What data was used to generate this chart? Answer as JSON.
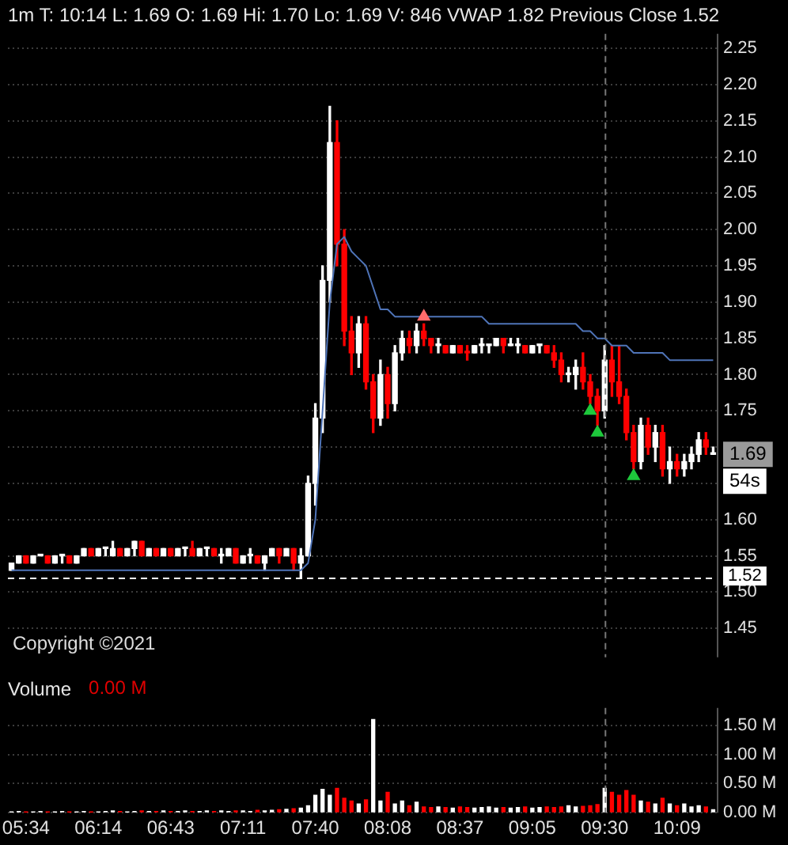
{
  "chart_data": [
    {
      "type": "candlestick",
      "title": "1m T: 10:14 L: 1.69 O: 1.69 Hi: 1.70 Lo: 1.69 V: 846 VWAP 1.82 Previous Close 1.52",
      "categories": [
        null,
        null,
        "05:34",
        null,
        null,
        null,
        null,
        null,
        null,
        null,
        null,
        null,
        "06:14",
        null,
        null,
        null,
        null,
        null,
        null,
        null,
        null,
        null,
        "06:43",
        null,
        null,
        null,
        null,
        null,
        null,
        null,
        null,
        null,
        "07:11",
        null,
        null,
        null,
        null,
        null,
        null,
        null,
        null,
        null,
        "07:40",
        null,
        null,
        null,
        null,
        null,
        null,
        null,
        null,
        null,
        "08:08",
        null,
        null,
        null,
        null,
        null,
        null,
        null,
        null,
        null,
        "08:37",
        null,
        null,
        null,
        null,
        null,
        null,
        null,
        null,
        null,
        "09:05",
        null,
        null,
        null,
        null,
        null,
        null,
        null,
        null,
        null,
        "09:30",
        null,
        null,
        null,
        null,
        null,
        null,
        null,
        null,
        null,
        "10:09",
        null,
        null,
        null,
        null,
        null
      ],
      "ylim": [
        1.41,
        2.27
      ],
      "yticks": [
        1.45,
        {
          "value": 1.5,
          "label": "1.50"
        },
        1.55,
        {
          "value": 1.6,
          "label": "1.60"
        },
        {
          "value": 1.65,
          "label": null
        },
        {
          "value": 1.7,
          "label": null
        },
        1.75,
        {
          "value": 1.8,
          "label": "1.80"
        },
        1.85,
        {
          "value": 1.9,
          "label": "1.90"
        },
        1.95,
        {
          "value": 2,
          "label": "2.00"
        },
        2.05,
        {
          "value": 2.1,
          "label": "2.10"
        },
        2.15,
        {
          "value": 2.2,
          "label": "2.20"
        },
        2.25
      ],
      "grid": "y",
      "legend": false,
      "tick_labels": "y",
      "series": [
        {
          "type": "candlestick",
          "ohlc": [
            [
              1.53,
              1.54,
              1.53,
              1.54
            ],
            [
              1.54,
              1.55,
              1.54,
              1.55
            ],
            [
              1.55,
              1.55,
              1.54,
              1.54
            ],
            [
              1.54,
              1.55,
              1.54,
              1.55
            ],
            [
              1.55,
              1.55,
              1.55,
              1.55
            ],
            [
              1.55,
              1.55,
              1.54,
              1.54
            ],
            [
              1.54,
              1.55,
              1.54,
              1.55
            ],
            [
              1.55,
              1.55,
              1.54,
              1.55
            ],
            [
              1.55,
              1.55,
              1.54,
              1.54
            ],
            [
              1.54,
              1.55,
              1.54,
              1.55
            ],
            [
              1.55,
              1.56,
              1.55,
              1.56
            ],
            [
              1.56,
              1.56,
              1.55,
              1.55
            ],
            [
              1.55,
              1.56,
              1.55,
              1.56
            ],
            [
              1.56,
              1.56,
              1.55,
              1.56
            ],
            [
              1.55,
              1.57,
              1.55,
              1.56
            ],
            [
              1.56,
              1.56,
              1.55,
              1.55
            ],
            [
              1.55,
              1.56,
              1.55,
              1.56
            ],
            [
              1.56,
              1.57,
              1.55,
              1.57
            ],
            [
              1.57,
              1.57,
              1.55,
              1.55
            ],
            [
              1.55,
              1.56,
              1.55,
              1.56
            ],
            [
              1.56,
              1.56,
              1.55,
              1.55
            ],
            [
              1.55,
              1.56,
              1.55,
              1.56
            ],
            [
              1.56,
              1.56,
              1.55,
              1.55
            ],
            [
              1.55,
              1.56,
              1.55,
              1.56
            ],
            [
              1.56,
              1.56,
              1.55,
              1.56
            ],
            [
              1.56,
              1.57,
              1.55,
              1.55
            ],
            [
              1.55,
              1.56,
              1.55,
              1.56
            ],
            [
              1.56,
              1.56,
              1.55,
              1.56
            ],
            [
              1.56,
              1.56,
              1.55,
              1.55
            ],
            [
              1.55,
              1.56,
              1.54,
              1.55
            ],
            [
              1.55,
              1.56,
              1.55,
              1.56
            ],
            [
              1.56,
              1.56,
              1.54,
              1.54
            ],
            [
              1.54,
              1.55,
              1.54,
              1.55
            ],
            [
              1.55,
              1.56,
              1.54,
              1.55
            ],
            [
              1.55,
              1.55,
              1.54,
              1.54
            ],
            [
              1.54,
              1.55,
              1.53,
              1.55
            ],
            [
              1.55,
              1.56,
              1.55,
              1.56
            ],
            [
              1.56,
              1.56,
              1.54,
              1.55
            ],
            [
              1.55,
              1.56,
              1.55,
              1.56
            ],
            [
              1.56,
              1.56,
              1.53,
              1.54
            ],
            [
              1.54,
              1.56,
              1.52,
              1.55
            ],
            [
              1.55,
              1.66,
              1.55,
              1.65
            ],
            [
              1.65,
              1.76,
              1.62,
              1.74
            ],
            [
              1.74,
              1.95,
              1.72,
              1.93
            ],
            [
              1.93,
              2.17,
              1.9,
              2.12
            ],
            [
              2.12,
              2.15,
              1.95,
              1.98
            ],
            [
              1.98,
              2,
              1.84,
              1.86
            ],
            [
              1.86,
              1.88,
              1.8,
              1.83
            ],
            [
              1.83,
              1.88,
              1.81,
              1.87
            ],
            [
              1.87,
              1.88,
              1.78,
              1.79
            ],
            [
              1.79,
              1.8,
              1.72,
              1.74
            ],
            [
              1.74,
              1.82,
              1.73,
              1.8
            ],
            [
              1.8,
              1.81,
              1.74,
              1.76
            ],
            [
              1.76,
              1.84,
              1.75,
              1.83
            ],
            [
              1.83,
              1.86,
              1.82,
              1.85
            ],
            [
              1.85,
              1.86,
              1.83,
              1.84
            ],
            [
              1.84,
              1.87,
              1.83,
              1.86
            ],
            [
              1.86,
              1.87,
              1.84,
              1.85
            ],
            [
              1.85,
              1.85,
              1.83,
              1.84
            ],
            [
              1.84,
              1.85,
              1.83,
              1.84
            ],
            [
              1.84,
              1.84,
              1.83,
              1.83
            ],
            [
              1.83,
              1.84,
              1.83,
              1.84
            ],
            [
              1.84,
              1.84,
              1.83,
              1.83
            ],
            [
              1.83,
              1.84,
              1.82,
              1.83
            ],
            [
              1.83,
              1.84,
              1.83,
              1.84
            ],
            [
              1.84,
              1.85,
              1.83,
              1.84
            ],
            [
              1.84,
              1.84,
              1.83,
              1.84
            ],
            [
              1.84,
              1.85,
              1.84,
              1.85
            ],
            [
              1.85,
              1.85,
              1.83,
              1.84
            ],
            [
              1.84,
              1.85,
              1.84,
              1.84
            ],
            [
              1.84,
              1.85,
              1.83,
              1.84
            ],
            [
              1.84,
              1.84,
              1.83,
              1.83
            ],
            [
              1.83,
              1.84,
              1.83,
              1.84
            ],
            [
              1.84,
              1.84,
              1.83,
              1.84
            ],
            [
              1.84,
              1.84,
              1.83,
              1.83
            ],
            [
              1.83,
              1.84,
              1.81,
              1.82
            ],
            [
              1.82,
              1.83,
              1.79,
              1.8
            ],
            [
              1.8,
              1.81,
              1.79,
              1.8
            ],
            [
              1.8,
              1.82,
              1.78,
              1.81
            ],
            [
              1.81,
              1.83,
              1.78,
              1.79
            ],
            [
              1.79,
              1.8,
              1.76,
              1.77
            ],
            [
              1.77,
              1.78,
              1.73,
              1.75
            ],
            [
              1.75,
              1.84,
              1.74,
              1.82
            ],
            [
              1.82,
              1.84,
              1.77,
              1.79
            ],
            [
              1.79,
              1.84,
              1.76,
              1.77
            ],
            [
              1.77,
              1.78,
              1.71,
              1.72
            ],
            [
              1.72,
              1.73,
              1.67,
              1.68
            ],
            [
              1.68,
              1.74,
              1.67,
              1.73
            ],
            [
              1.73,
              1.74,
              1.69,
              1.7
            ],
            [
              1.7,
              1.73,
              1.68,
              1.72
            ],
            [
              1.72,
              1.73,
              1.66,
              1.67
            ],
            [
              1.67,
              1.7,
              1.65,
              1.68
            ],
            [
              1.68,
              1.69,
              1.66,
              1.67
            ],
            [
              1.67,
              1.69,
              1.66,
              1.68
            ],
            [
              1.68,
              1.7,
              1.67,
              1.69
            ],
            [
              1.69,
              1.72,
              1.68,
              1.71
            ],
            [
              1.71,
              1.72,
              1.69,
              1.7
            ],
            [
              1.69,
              1.7,
              1.69,
              1.69
            ]
          ],
          "colors": [
            "#ffffff",
            "#ffffff",
            "#ff0000",
            "#ffffff",
            "#ffffff",
            "#ff0000",
            "#ffffff",
            "#ffffff",
            "#ff0000",
            "#ffffff",
            "#ffffff",
            "#ff0000",
            "#ffffff",
            "#ffffff",
            "#ffffff",
            "#ff0000",
            "#ffffff",
            "#ffffff",
            "#ff0000",
            "#ffffff",
            "#ff0000",
            "#ffffff",
            "#ff0000",
            "#ffffff",
            "#ffffff",
            "#ff0000",
            "#ffffff",
            "#ffffff",
            "#ff0000",
            "#ffffff",
            "#ffffff",
            "#ff0000",
            "#ffffff",
            "#ffffff",
            "#ff0000",
            "#ffffff",
            "#ffffff",
            "#ff0000",
            "#ffffff",
            "#ff0000",
            "#ffffff",
            "#ffffff",
            "#ffffff",
            "#ffffff",
            "#ffffff",
            "#ff0000",
            "#ff0000",
            "#ff0000",
            "#ffffff",
            "#ff0000",
            "#ff0000",
            "#ffffff",
            "#ff0000",
            "#ffffff",
            "#ffffff",
            "#ff0000",
            "#ffffff",
            "#ff0000",
            "#ff0000",
            "#ffffff",
            "#ff0000",
            "#ffffff",
            "#ff0000",
            "#ff0000",
            "#ffffff",
            "#ffffff",
            "#ffffff",
            "#ffffff",
            "#ff0000",
            "#ffffff",
            "#ffffff",
            "#ff0000",
            "#ffffff",
            "#ffffff",
            "#ff0000",
            "#ff0000",
            "#ff0000",
            "#ffffff",
            "#ffffff",
            "#ff0000",
            "#ff0000",
            "#ff0000",
            "#ffffff",
            "#ff0000",
            "#ff0000",
            "#ff0000",
            "#ff0000",
            "#ffffff",
            "#ff0000",
            "#ffffff",
            "#ff0000",
            "#ffffff",
            "#ff0000",
            "#ffffff",
            "#ffffff",
            "#ffffff",
            "#ff0000",
            "#ffffff"
          ]
        },
        {
          "type": "line",
          "color": "#4f74b8",
          "marker": "none",
          "values": [
            1.53,
            1.53,
            1.53,
            1.53,
            1.53,
            1.53,
            1.53,
            1.53,
            1.53,
            1.53,
            1.53,
            1.53,
            1.53,
            1.53,
            1.53,
            1.53,
            1.53,
            1.53,
            1.53,
            1.53,
            1.53,
            1.53,
            1.53,
            1.53,
            1.53,
            1.53,
            1.53,
            1.53,
            1.53,
            1.53,
            1.53,
            1.53,
            1.53,
            1.53,
            1.53,
            1.53,
            1.53,
            1.53,
            1.53,
            1.53,
            1.53,
            1.54,
            1.6,
            1.75,
            1.9,
            1.98,
            1.99,
            1.97,
            1.96,
            1.95,
            1.92,
            1.89,
            1.89,
            1.88,
            1.88,
            1.88,
            1.88,
            1.88,
            1.88,
            1.88,
            1.88,
            1.88,
            1.88,
            1.88,
            1.88,
            1.88,
            1.87,
            1.87,
            1.87,
            1.87,
            1.87,
            1.87,
            1.87,
            1.87,
            1.87,
            1.87,
            1.87,
            1.87,
            1.87,
            1.86,
            1.86,
            1.85,
            1.85,
            1.84,
            1.84,
            1.84,
            1.83,
            1.83,
            1.83,
            1.83,
            1.83,
            1.82,
            1.82,
            1.82,
            1.82,
            1.82,
            1.82,
            1.82
          ]
        },
        {
          "type": "scatter",
          "color": "#ff6b6b",
          "marker": "triangle",
          "values": [
            null,
            null,
            null,
            null,
            null,
            null,
            null,
            null,
            null,
            null,
            null,
            null,
            null,
            null,
            null,
            null,
            null,
            null,
            null,
            null,
            null,
            null,
            null,
            null,
            null,
            null,
            null,
            null,
            null,
            null,
            null,
            null,
            null,
            null,
            null,
            null,
            null,
            null,
            null,
            null,
            null,
            null,
            null,
            null,
            null,
            null,
            null,
            null,
            null,
            null,
            null,
            null,
            null,
            null,
            null,
            null,
            null,
            1.88,
            null,
            null,
            null,
            null,
            null,
            null,
            null,
            null,
            null,
            null,
            null,
            null,
            null,
            null,
            null,
            null,
            null,
            null,
            null,
            null,
            null,
            null,
            null,
            null,
            null,
            null,
            null,
            null,
            null,
            null,
            null,
            null,
            null,
            null,
            null,
            null,
            null,
            null,
            null,
            null
          ]
        },
        {
          "type": "scatter",
          "color": "#1ec83c",
          "marker": "triangle",
          "values": [
            null,
            null,
            null,
            null,
            null,
            null,
            null,
            null,
            null,
            null,
            null,
            null,
            null,
            null,
            null,
            null,
            null,
            null,
            null,
            null,
            null,
            null,
            null,
            null,
            null,
            null,
            null,
            null,
            null,
            null,
            null,
            null,
            null,
            null,
            null,
            null,
            null,
            null,
            null,
            null,
            null,
            null,
            null,
            null,
            null,
            null,
            null,
            null,
            null,
            null,
            null,
            null,
            null,
            null,
            null,
            null,
            null,
            null,
            null,
            null,
            null,
            null,
            null,
            null,
            null,
            null,
            null,
            null,
            null,
            null,
            null,
            null,
            null,
            null,
            null,
            null,
            null,
            null,
            null,
            null,
            1.75,
            1.72,
            null,
            null,
            null,
            null,
            1.66,
            null,
            null,
            null,
            null,
            null,
            null,
            null,
            null,
            null,
            null,
            null
          ]
        }
      ],
      "ref_lines": [
        {
          "axis": "y",
          "value": 1.52,
          "label": "1.52",
          "color": "#ffffff",
          "line_style": "dashed"
        },
        {
          "axis": "x",
          "value": "09:30",
          "color": "#777777",
          "line_style": "dashed"
        }
      ],
      "annotations": [
        "Copyright ©2021",
        "1.69",
        "54s"
      ]
    },
    {
      "type": "bar",
      "title": "Volume",
      "categories": [
        null,
        null,
        "05:34",
        null,
        null,
        null,
        null,
        null,
        null,
        null,
        null,
        null,
        "06:14",
        null,
        null,
        null,
        null,
        null,
        null,
        null,
        null,
        null,
        "06:43",
        null,
        null,
        null,
        null,
        null,
        null,
        null,
        null,
        null,
        "07:11",
        null,
        null,
        null,
        null,
        null,
        null,
        null,
        null,
        null,
        "07:40",
        null,
        null,
        null,
        null,
        null,
        null,
        null,
        null,
        null,
        "08:08",
        null,
        null,
        null,
        null,
        null,
        null,
        null,
        null,
        null,
        "08:37",
        null,
        null,
        null,
        null,
        null,
        null,
        null,
        null,
        null,
        "09:05",
        null,
        null,
        null,
        null,
        null,
        null,
        null,
        null,
        null,
        "09:30",
        null,
        null,
        null,
        null,
        null,
        null,
        null,
        null,
        null,
        "10:09",
        null,
        null,
        null,
        null,
        null
      ],
      "ylim": [
        0,
        1.8
      ],
      "yticks": [
        {
          "value": 0,
          "label": "0.00 M"
        },
        {
          "value": 0.5,
          "label": "0.50 M"
        },
        {
          "value": 1,
          "label": "1.00 M"
        },
        {
          "value": 1.5,
          "label": "1.50 M"
        }
      ],
      "grid": "y",
      "legend": false,
      "values": [
        0.01,
        0.02,
        0.01,
        0.01,
        0.02,
        0.01,
        0.01,
        0.02,
        0.01,
        0.01,
        0.02,
        0.01,
        0.01,
        0.02,
        0.03,
        0.02,
        0.01,
        0.02,
        0.03,
        0.02,
        0.02,
        0.03,
        0.02,
        0.02,
        0.03,
        0.02,
        0.02,
        0.03,
        0.02,
        0.03,
        0.02,
        0.03,
        0.03,
        0.02,
        0.04,
        0.03,
        0.04,
        0.05,
        0.06,
        0.07,
        0.08,
        0.12,
        0.3,
        0.4,
        0.3,
        0.42,
        0.25,
        0.2,
        0.15,
        0.22,
        1.6,
        0.2,
        0.35,
        0.15,
        0.2,
        0.12,
        0.18,
        0.1,
        0.09,
        0.1,
        0.09,
        0.08,
        0.1,
        0.09,
        0.08,
        0.09,
        0.1,
        0.08,
        0.09,
        0.08,
        0.09,
        0.1,
        0.08,
        0.09,
        0.1,
        0.09,
        0.1,
        0.12,
        0.1,
        0.11,
        0.12,
        0.14,
        0.42,
        0.35,
        0.3,
        0.38,
        0.3,
        0.2,
        0.18,
        0.15,
        0.25,
        0.15,
        0.12,
        0.15,
        0.1,
        0.12,
        0.1,
        0.05
      ],
      "colors": [
        "#ffffff",
        "#ffffff",
        "#ff0000",
        "#ffffff",
        "#ffffff",
        "#ff0000",
        "#ffffff",
        "#ffffff",
        "#ff0000",
        "#ffffff",
        "#ffffff",
        "#ff0000",
        "#ffffff",
        "#ffffff",
        "#ffffff",
        "#ff0000",
        "#ffffff",
        "#ffffff",
        "#ff0000",
        "#ffffff",
        "#ff0000",
        "#ffffff",
        "#ff0000",
        "#ffffff",
        "#ffffff",
        "#ff0000",
        "#ffffff",
        "#ffffff",
        "#ff0000",
        "#ffffff",
        "#ffffff",
        "#ff0000",
        "#ffffff",
        "#ffffff",
        "#ff0000",
        "#ffffff",
        "#ffffff",
        "#ff0000",
        "#ffffff",
        "#ff0000",
        "#ffffff",
        "#ffffff",
        "#ffffff",
        "#ffffff",
        "#ffffff",
        "#ff0000",
        "#ff0000",
        "#ff0000",
        "#ffffff",
        "#ff0000",
        "#ffffff",
        "#ffffff",
        "#ff0000",
        "#ffffff",
        "#ffffff",
        "#ff0000",
        "#ffffff",
        "#ff0000",
        "#ff0000",
        "#ffffff",
        "#ff0000",
        "#ffffff",
        "#ff0000",
        "#ff0000",
        "#ffffff",
        "#ffffff",
        "#ffffff",
        "#ffffff",
        "#ff0000",
        "#ffffff",
        "#ffffff",
        "#ff0000",
        "#ffffff",
        "#ffffff",
        "#ff0000",
        "#ff0000",
        "#ff0000",
        "#ffffff",
        "#ffffff",
        "#ff0000",
        "#ff0000",
        "#ff0000",
        "#ffffff",
        "#ff0000",
        "#ff0000",
        "#ff0000",
        "#ff0000",
        "#ffffff",
        "#ff0000",
        "#ffffff",
        "#ff0000",
        "#ffffff",
        "#ff0000",
        "#ffffff",
        "#ffffff",
        "#ffffff",
        "#ff0000",
        "#ffffff"
      ],
      "ref_lines": [
        {
          "axis": "x",
          "value": "09:30",
          "color": "#777777",
          "line_style": "dashed"
        }
      ],
      "annotations": [
        "0.00 M"
      ]
    }
  ]
}
